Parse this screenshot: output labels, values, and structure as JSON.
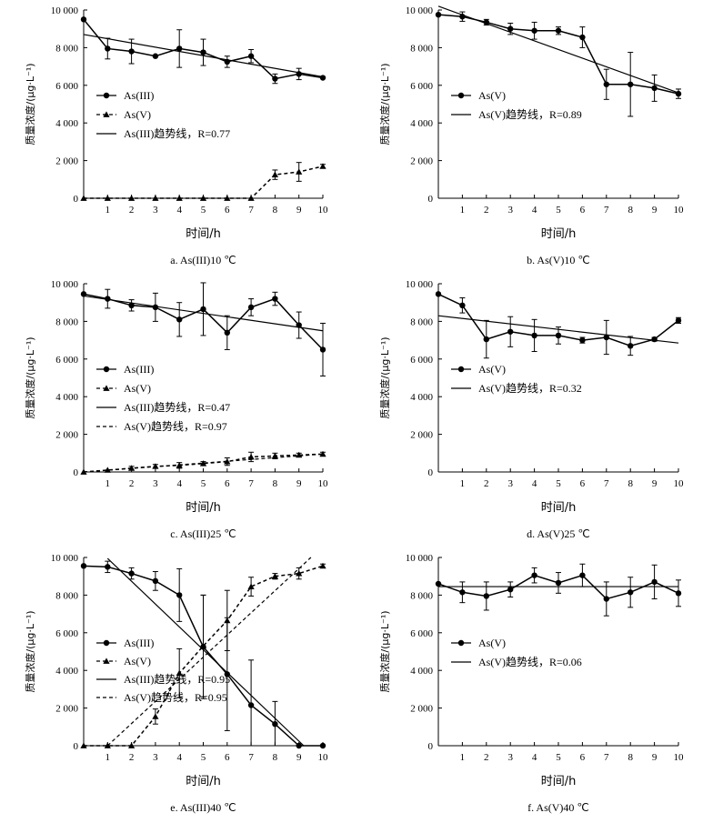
{
  "chart_data": [
    {
      "type": "line",
      "caption": "a. As(III)10 ℃",
      "xlabel": "时间/h",
      "ylabel": "质量浓度/(μg·L⁻¹)",
      "xlim": [
        0,
        10
      ],
      "ylim": [
        0,
        10000
      ],
      "x_ticks": [
        "1",
        "2",
        "3",
        "4",
        "5",
        "6",
        "7",
        "8",
        "9",
        "10"
      ],
      "y_ticks": [
        "0",
        "2 000",
        "4 000",
        "6 000",
        "8 000",
        "10 000"
      ],
      "legend_position": "middle-left",
      "series": [
        {
          "name": "As(III)",
          "style": "solid",
          "marker": "circle",
          "x": [
            0,
            1,
            2,
            3,
            4,
            5,
            6,
            7,
            8,
            9,
            10
          ],
          "y": [
            9500,
            7950,
            7800,
            7550,
            7950,
            7750,
            7250,
            7550,
            6350,
            6600,
            6400
          ],
          "err": [
            0,
            550,
            650,
            0,
            1000,
            700,
            300,
            350,
            250,
            300,
            0
          ]
        },
        {
          "name": "As(V)",
          "style": "dashed",
          "marker": "triangle",
          "x": [
            0,
            1,
            2,
            3,
            4,
            5,
            6,
            7,
            8,
            9,
            10
          ],
          "y": [
            0,
            0,
            0,
            0,
            0,
            0,
            0,
            0,
            1250,
            1400,
            1700
          ],
          "err": [
            0,
            0,
            0,
            0,
            0,
            0,
            0,
            0,
            250,
            500,
            100
          ]
        },
        {
          "name": "As(III)趋势线，R=0.77",
          "style": "solid",
          "marker": "none",
          "x": [
            0,
            10
          ],
          "y": [
            8700,
            6450
          ]
        }
      ]
    },
    {
      "type": "line",
      "caption": "b. As(V)10 ℃",
      "xlabel": "时间/h",
      "ylabel": "质量浓度/(μg·L⁻¹)",
      "xlim": [
        0,
        10
      ],
      "ylim": [
        0,
        10000
      ],
      "x_ticks": [
        "1",
        "2",
        "3",
        "4",
        "5",
        "6",
        "7",
        "8",
        "9",
        "10"
      ],
      "y_ticks": [
        "0",
        "2 000",
        "4 000",
        "6 000",
        "8 000",
        "10 000"
      ],
      "legend_position": "middle-left",
      "series": [
        {
          "name": "As(V)",
          "style": "solid",
          "marker": "circle",
          "x": [
            0,
            1,
            2,
            3,
            4,
            5,
            6,
            7,
            8,
            9,
            10
          ],
          "y": [
            9750,
            9650,
            9350,
            9000,
            8900,
            8900,
            8550,
            6050,
            6050,
            5850,
            5550
          ],
          "err": [
            0,
            250,
            150,
            300,
            450,
            200,
            550,
            800,
            1700,
            700,
            250
          ]
        },
        {
          "name": "As(V)趋势线，R=0.89",
          "style": "solid",
          "marker": "none",
          "x": [
            0,
            10
          ],
          "y": [
            10200,
            5600
          ]
        }
      ]
    },
    {
      "type": "line",
      "caption": "c. As(III)25 ℃",
      "xlabel": "时间/h",
      "ylabel": "质量浓度/(μg·L⁻¹)",
      "xlim": [
        0,
        10
      ],
      "ylim": [
        0,
        10000
      ],
      "x_ticks": [
        "1",
        "2",
        "3",
        "4",
        "5",
        "6",
        "7",
        "8",
        "9",
        "10"
      ],
      "y_ticks": [
        "0",
        "2 000",
        "4 000",
        "6 000",
        "8 000",
        "10 000"
      ],
      "legend_position": "middle-left",
      "series": [
        {
          "name": "As(III)",
          "style": "solid",
          "marker": "circle",
          "x": [
            0,
            1,
            2,
            3,
            4,
            5,
            6,
            7,
            8,
            9,
            10
          ],
          "y": [
            9450,
            9200,
            8850,
            8750,
            8100,
            8650,
            7400,
            8750,
            9200,
            7800,
            6500
          ],
          "err": [
            0,
            500,
            300,
            750,
            900,
            1400,
            900,
            450,
            350,
            700,
            1400
          ]
        },
        {
          "name": "As(V)",
          "style": "dashed",
          "marker": "triangle",
          "x": [
            0,
            1,
            2,
            3,
            4,
            5,
            6,
            7,
            8,
            9,
            10
          ],
          "y": [
            0,
            100,
            200,
            300,
            350,
            450,
            550,
            800,
            850,
            900,
            950
          ],
          "err": [
            0,
            0,
            100,
            100,
            150,
            100,
            200,
            250,
            150,
            100,
            100
          ]
        },
        {
          "name": "As(III)趋势线，R=0.47",
          "style": "solid",
          "marker": "none",
          "x": [
            0,
            10
          ],
          "y": [
            9350,
            7500
          ]
        },
        {
          "name": "As(V)趋势线，R=0.97",
          "style": "dashed",
          "marker": "none",
          "x": [
            0,
            10
          ],
          "y": [
            0,
            950
          ]
        }
      ]
    },
    {
      "type": "line",
      "caption": "d. As(V)25 ℃",
      "xlabel": "时间/h",
      "ylabel": "质量浓度/(μg·L⁻¹)",
      "xlim": [
        0,
        10
      ],
      "ylim": [
        0,
        10000
      ],
      "x_ticks": [
        "1",
        "2",
        "3",
        "4",
        "5",
        "6",
        "7",
        "8",
        "9",
        "10"
      ],
      "y_ticks": [
        "0",
        "2 000",
        "4 000",
        "6 000",
        "8 000",
        "10 000"
      ],
      "legend_position": "middle-left",
      "series": [
        {
          "name": "As(V)",
          "style": "solid",
          "marker": "circle",
          "x": [
            0,
            1,
            2,
            3,
            4,
            5,
            6,
            7,
            8,
            9,
            10
          ],
          "y": [
            9450,
            8850,
            7050,
            7450,
            7250,
            7250,
            7000,
            7150,
            6700,
            7050,
            8050
          ],
          "err": [
            0,
            400,
            1000,
            800,
            850,
            450,
            150,
            900,
            500,
            100,
            150
          ]
        },
        {
          "name": "As(V)趋势线，R=0.32",
          "style": "solid",
          "marker": "none",
          "x": [
            0,
            10
          ],
          "y": [
            8300,
            6850
          ]
        }
      ]
    },
    {
      "type": "line",
      "caption": "e. As(III)40 ℃",
      "xlabel": "时间/h",
      "ylabel": "质量浓度/(μg·L⁻¹)",
      "xlim": [
        0,
        10
      ],
      "ylim": [
        0,
        10000
      ],
      "x_ticks": [
        "1",
        "2",
        "3",
        "4",
        "5",
        "6",
        "7",
        "8",
        "9",
        "10"
      ],
      "y_ticks": [
        "0",
        "2 000",
        "4 000",
        "6 000",
        "8 000",
        "10 000"
      ],
      "legend_position": "middle-left",
      "series": [
        {
          "name": "As(III)",
          "style": "solid",
          "marker": "circle",
          "x": [
            0,
            1,
            2,
            3,
            4,
            5,
            6,
            7,
            8,
            9,
            10
          ],
          "y": [
            9550,
            9500,
            9150,
            8750,
            8000,
            5250,
            3800,
            2150,
            1150,
            0,
            0
          ],
          "err": [
            0,
            300,
            300,
            500,
            1400,
            2750,
            3000,
            2400,
            1200,
            0,
            0
          ]
        },
        {
          "name": "As(V)",
          "style": "dashed",
          "marker": "triangle",
          "x": [
            0,
            1,
            2,
            3,
            4,
            5,
            6,
            7,
            8,
            9,
            10
          ],
          "y": [
            0,
            0,
            0,
            1550,
            3850,
            5300,
            6650,
            8450,
            9000,
            9150,
            9550
          ],
          "err": [
            0,
            0,
            0,
            400,
            1300,
            2700,
            1600,
            500,
            150,
            300,
            100
          ]
        },
        {
          "name": "As(III)趋势线，R=0.95",
          "style": "solid",
          "marker": "none",
          "x": [
            1,
            9.2
          ],
          "y": [
            9950,
            0
          ]
        },
        {
          "name": "As(V)趋势线，R=0.95",
          "style": "dashed",
          "marker": "none",
          "x": [
            1,
            9.5
          ],
          "y": [
            0,
            10000
          ]
        }
      ]
    },
    {
      "type": "line",
      "caption": "f. As(V)40 ℃",
      "xlabel": "时间/h",
      "ylabel": "质量浓度/(μg·L⁻¹)",
      "xlim": [
        0,
        10
      ],
      "ylim": [
        0,
        10000
      ],
      "x_ticks": [
        "1",
        "2",
        "3",
        "4",
        "5",
        "6",
        "7",
        "8",
        "9",
        "10"
      ],
      "y_ticks": [
        "0",
        "2 000",
        "4 000",
        "6 000",
        "8 000",
        "10 000"
      ],
      "legend_position": "middle-left",
      "series": [
        {
          "name": "As(V)",
          "style": "solid",
          "marker": "circle",
          "x": [
            0,
            1,
            2,
            3,
            4,
            5,
            6,
            7,
            8,
            9,
            10
          ],
          "y": [
            8600,
            8150,
            7950,
            8300,
            9050,
            8650,
            9050,
            7800,
            8150,
            8700,
            8100
          ],
          "err": [
            0,
            550,
            750,
            400,
            400,
            550,
            600,
            900,
            800,
            900,
            700
          ]
        },
        {
          "name": "As(V)趋势线，R=0.06",
          "style": "solid",
          "marker": "none",
          "x": [
            0,
            10
          ],
          "y": [
            8450,
            8450
          ]
        }
      ]
    }
  ]
}
